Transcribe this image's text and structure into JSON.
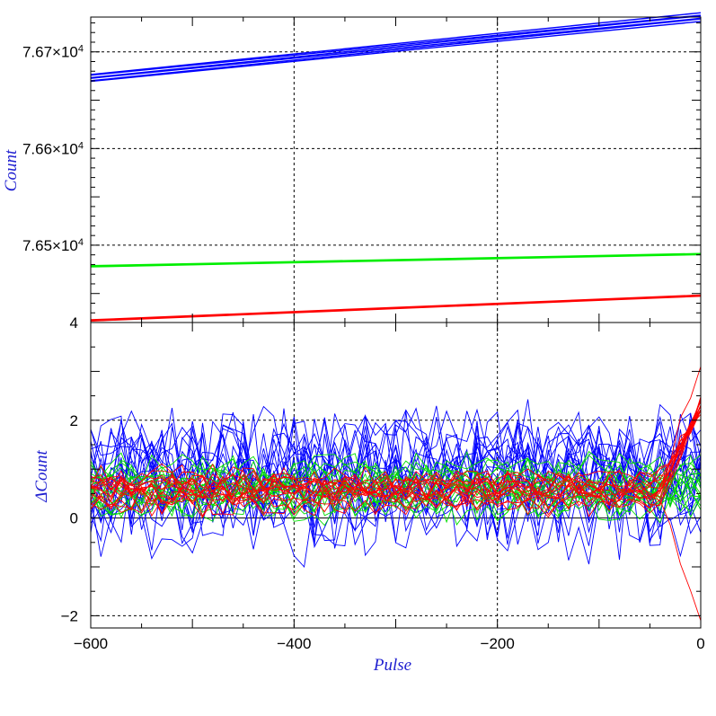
{
  "chart_data": [
    {
      "type": "line",
      "panel": "top",
      "ylabel": "Count",
      "xlim": [
        -600,
        0
      ],
      "ylim": [
        76420,
        76736
      ],
      "x_ticks": [
        -600,
        -400,
        -200,
        0
      ],
      "y_ticks": [
        {
          "value": 76500,
          "mantissa": "7.65×10",
          "exp": "4"
        },
        {
          "value": 76600,
          "mantissa": "7.66×10",
          "exp": "4"
        },
        {
          "value": 76700,
          "mantissa": "7.67×10",
          "exp": "4"
        }
      ],
      "grid": true,
      "series": [
        {
          "color": "#0000ff",
          "x": [
            -600,
            0
          ],
          "y": [
            76673,
            76736
          ],
          "bundle": 6,
          "spread": 1.6
        },
        {
          "color": "#00ee00",
          "x": [
            -600,
            0
          ],
          "y": [
            76478,
            76491
          ],
          "bundle": 3,
          "spread": 0.6
        },
        {
          "color": "#ff0000",
          "x": [
            -600,
            0
          ],
          "y": [
            76422,
            76448
          ],
          "bundle": 3,
          "spread": 0.6
        }
      ]
    },
    {
      "type": "line",
      "panel": "bottom",
      "xlabel": "Pulse",
      "ylabel": "ΔCount",
      "xlim": [
        -600,
        0
      ],
      "ylim": [
        -2.25,
        4
      ],
      "x_ticks": [
        -600,
        -400,
        -200,
        0
      ],
      "y_ticks": [
        -2,
        0,
        2,
        4
      ],
      "grid": true,
      "step": 10,
      "series": [
        {
          "color": "#0000ff",
          "lines": 20,
          "mean": 1.0,
          "noise": 1.25,
          "seed": 11
        },
        {
          "color": "#00dd00",
          "lines": 16,
          "mean": 0.6,
          "noise": 0.45,
          "seed": 37
        },
        {
          "color": "#ff0000",
          "lines": 16,
          "mean": 0.55,
          "noise": 0.35,
          "seed": 73,
          "tail_up": 2.3,
          "tail_down": -2.1
        }
      ]
    }
  ]
}
